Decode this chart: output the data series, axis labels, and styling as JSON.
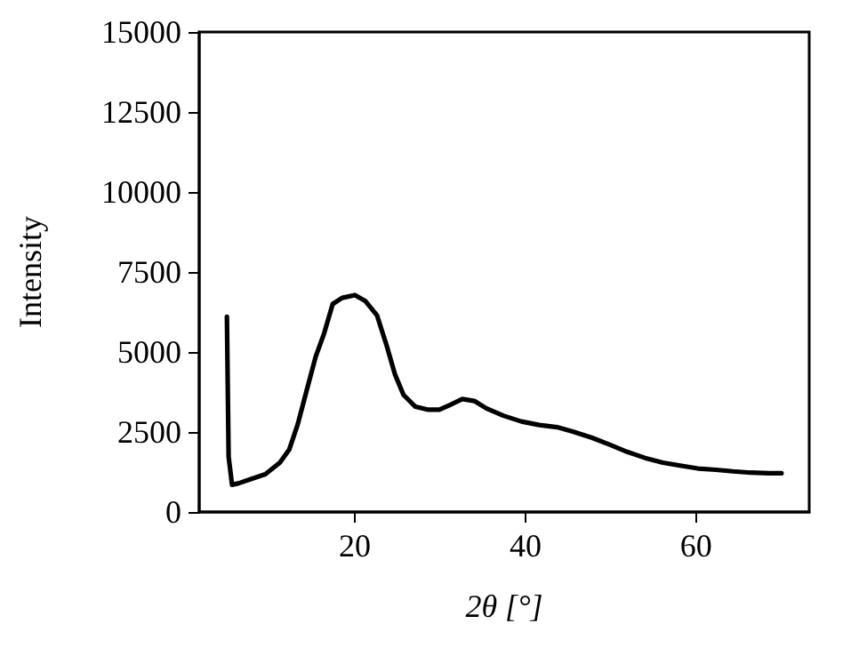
{
  "chart_data": {
    "type": "line",
    "xlabel": "2θ [°]",
    "ylabel": "Intensity",
    "x": [
      5,
      5.2,
      5.6,
      6.4,
      7.8,
      9.5,
      11.2,
      12.3,
      13.3,
      14.3,
      15.4,
      16.4,
      17.4,
      18.5,
      20,
      21.2,
      22.6,
      23.7,
      24.7,
      25.7,
      27.1,
      28.5,
      29.9,
      31.2,
      32.6,
      34,
      35.4,
      37.4,
      39.5,
      41.6,
      43.7,
      45.7,
      47.8,
      49.9,
      51.9,
      54,
      56.1,
      58.1,
      60.2,
      62.3,
      64.3,
      66.4,
      68.5,
      70
    ],
    "series": [
      {
        "color": "#000000",
        "values": [
          6100,
          1730,
          850,
          900,
          1030,
          1180,
          1540,
          1950,
          2740,
          3750,
          4850,
          5590,
          6500,
          6690,
          6780,
          6600,
          6140,
          5220,
          4300,
          3660,
          3290,
          3200,
          3200,
          3350,
          3530,
          3470,
          3240,
          3010,
          2830,
          2720,
          2650,
          2500,
          2320,
          2100,
          1880,
          1690,
          1540,
          1450,
          1360,
          1320,
          1270,
          1230,
          1210,
          1210
        ]
      }
    ],
    "xlim": [
      1.75,
      73.25
    ],
    "xticks": [
      20,
      40,
      60
    ],
    "ylim": [
      0,
      15000
    ],
    "yticks": [
      0,
      2500,
      5000,
      7500,
      10000,
      12500,
      15000
    ],
    "marker": "none",
    "line_style": "solid"
  }
}
